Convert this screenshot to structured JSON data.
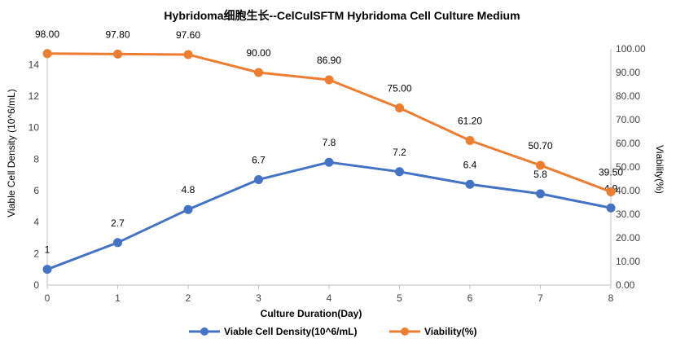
{
  "chart_data": {
    "type": "line",
    "title": "Hybridoma细胞生长--CelCulSFTM Hybridoma Cell Culture Medium",
    "xlabel": "Culture Duration(Day)",
    "ylabel_left": "Viable  Cell Density (10^6/mL)",
    "ylabel_right": "Viability(%)",
    "x": [
      0,
      1,
      2,
      3,
      4,
      5,
      6,
      7,
      8
    ],
    "x_tick_labels": [
      "0",
      "1",
      "2",
      "3",
      "4",
      "5",
      "6",
      "7",
      "8"
    ],
    "ylim_left": [
      0,
      15
    ],
    "y_ticks_left": [
      "0",
      "2",
      "4",
      "6",
      "8",
      "10",
      "12",
      "14"
    ],
    "ylim_right": [
      0,
      100
    ],
    "y_ticks_right": [
      "0.00",
      "10.00",
      "20.00",
      "30.00",
      "40.00",
      "50.00",
      "60.00",
      "70.00",
      "80.00",
      "90.00",
      "100.00"
    ],
    "grid": false,
    "legend_position": "bottom",
    "series": [
      {
        "name": "Viable  Cell Density(10^6/mL)",
        "axis": "left",
        "color": "#4472C4",
        "values": [
          1,
          2.7,
          4.8,
          6.7,
          7.8,
          7.2,
          6.4,
          5.8,
          4.9
        ],
        "labels": [
          "1",
          "2.7",
          "4.8",
          "6.7",
          "7.8",
          "7.2",
          "6.4",
          "5.8",
          "4.9"
        ]
      },
      {
        "name": "Viability(%)",
        "axis": "right",
        "color": "#ED7D31",
        "values": [
          98.0,
          97.8,
          97.6,
          90.0,
          86.9,
          75.0,
          61.2,
          50.7,
          39.5
        ],
        "labels": [
          "98.00",
          "97.80",
          "97.60",
          "90.00",
          "86.90",
          "75.00",
          "61.20",
          "50.70",
          "39.50"
        ]
      }
    ]
  }
}
